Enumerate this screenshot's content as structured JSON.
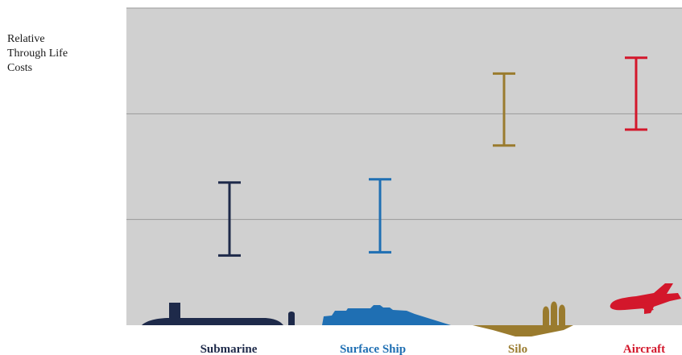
{
  "chart_data": {
    "type": "range",
    "ylabel_lines": [
      "Relative",
      "Through Life",
      "Costs"
    ],
    "categories": [
      "Submarine",
      "Surface Ship",
      "Silo",
      "Aircraft"
    ],
    "colors": [
      "#1e2a4a",
      "#1f6fb3",
      "#9a7b2e",
      "#d3172b"
    ],
    "ranges": [
      {
        "low": 1.32,
        "high": 2.7
      },
      {
        "low": 1.38,
        "high": 2.76
      },
      {
        "low": 3.4,
        "high": 4.76
      },
      {
        "low": 3.7,
        "high": 5.06
      }
    ],
    "ylim": [
      0,
      6
    ],
    "grid": true,
    "background": "#d0d0d0",
    "grid_color": "#9a9a9a",
    "icons": [
      "submarine-icon",
      "surface-ship-icon",
      "silo-icon",
      "aircraft-icon"
    ]
  }
}
